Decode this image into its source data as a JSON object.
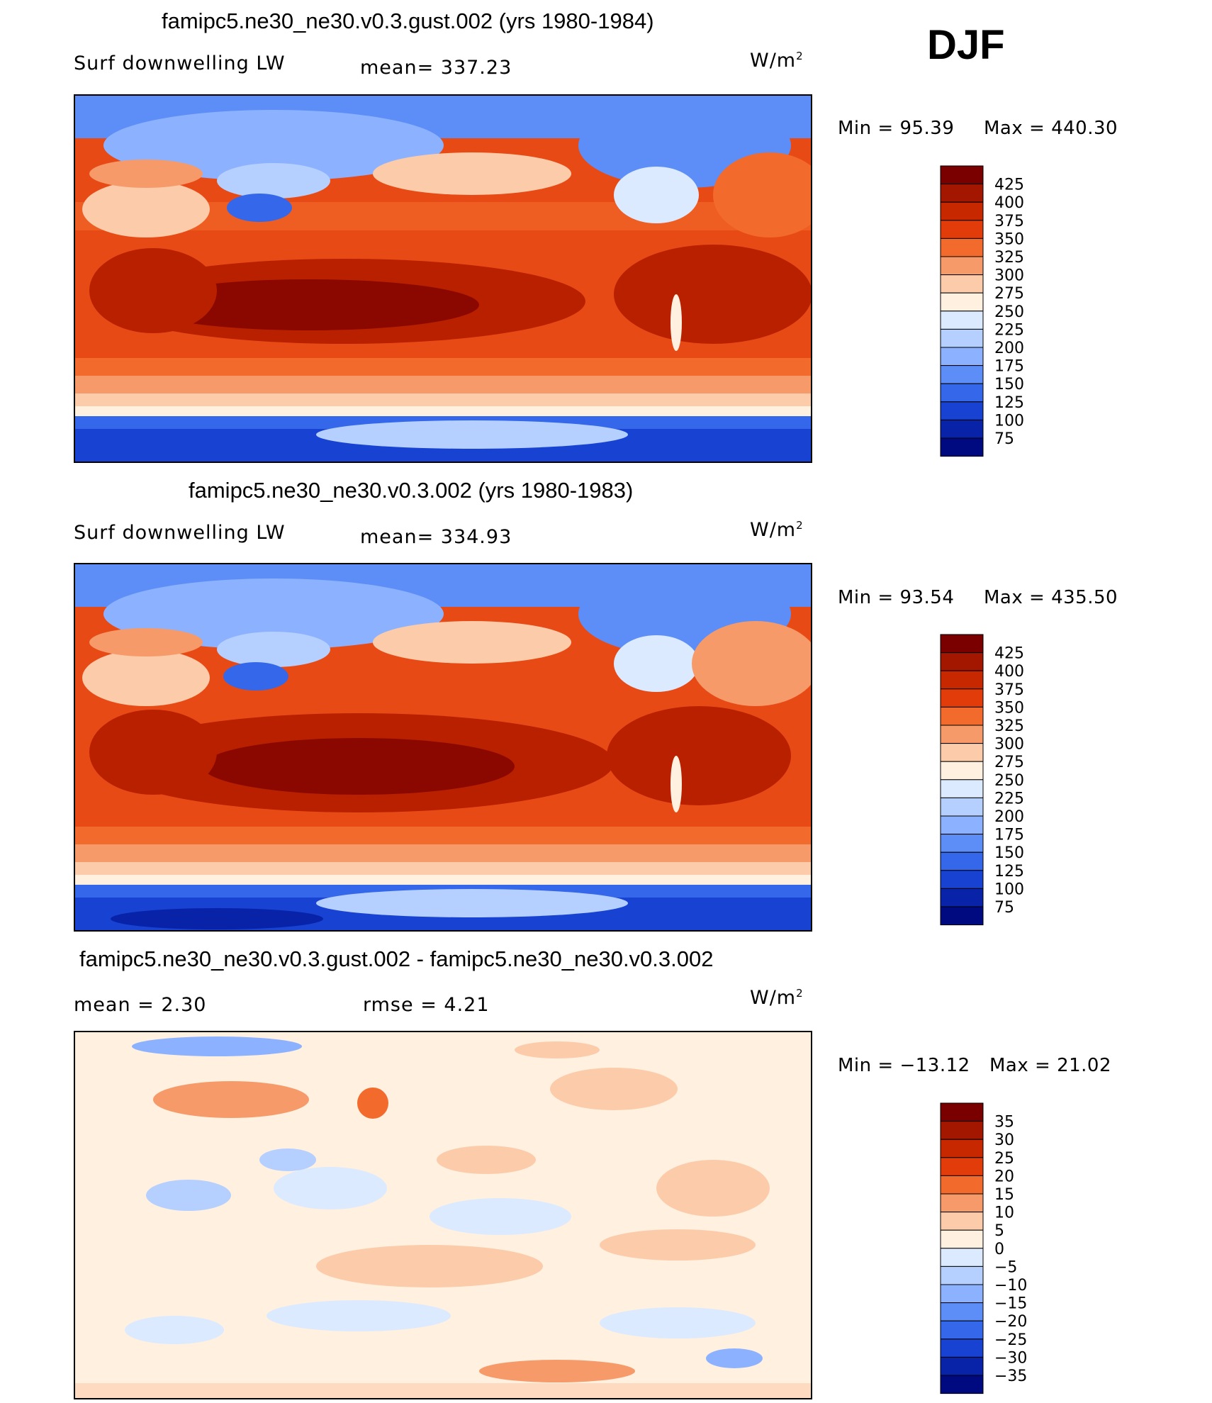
{
  "season": "DJF",
  "units_label": "W/m",
  "units_sup": "2",
  "panels": [
    {
      "title": "famipc5.ne30_ne30.v0.3.gust.002 (yrs 1980-1984)",
      "left_label": "Surf  downwelling LW",
      "stat_text": "mean=  337.23",
      "min_text": "Min  =    95.39",
      "max_text": "Max  =  440.30",
      "colorbar_labels": [
        "425",
        "400",
        "375",
        "350",
        "325",
        "300",
        "275",
        "250",
        "225",
        "200",
        "175",
        "150",
        "125",
        "100",
        "75"
      ],
      "colors": [
        "#7a0000",
        "#a31600",
        "#c82800",
        "#e23c0a",
        "#f26a2c",
        "#f79a6a",
        "#fccbaa",
        "#fff0e0",
        "#dbeaff",
        "#b5cfff",
        "#8cb2ff",
        "#5d8ef7",
        "#3567ea",
        "#1742d2",
        "#0822a8",
        "#000a80"
      ]
    },
    {
      "title": "famipc5.ne30_ne30.v0.3.002 (yrs 1980-1983)",
      "left_label": "Surf  downwelling LW",
      "stat_text": "mean=  334.93",
      "min_text": "Min  =    93.54",
      "max_text": "Max  =  435.50",
      "colorbar_labels": [
        "425",
        "400",
        "375",
        "350",
        "325",
        "300",
        "275",
        "250",
        "225",
        "200",
        "175",
        "150",
        "125",
        "100",
        "75"
      ],
      "colors": [
        "#7a0000",
        "#a31600",
        "#c82800",
        "#e23c0a",
        "#f26a2c",
        "#f79a6a",
        "#fccbaa",
        "#fff0e0",
        "#dbeaff",
        "#b5cfff",
        "#8cb2ff",
        "#5d8ef7",
        "#3567ea",
        "#1742d2",
        "#0822a8",
        "#000a80"
      ]
    },
    {
      "title": "famipc5.ne30_ne30.v0.3.gust.002 - famipc5.ne30_ne30.v0.3.002",
      "mean_text": "mean  =      2.30",
      "rmse_text": "rmse  =      4.21",
      "min_text": "Min  =  −13.12",
      "max_text": "Max  =    21.02",
      "colorbar_labels": [
        "35",
        "30",
        "25",
        "20",
        "15",
        "10",
        "5",
        "0",
        "−5",
        "−10",
        "−15",
        "−20",
        "−25",
        "−30",
        "−35"
      ],
      "colors": [
        "#7a0000",
        "#a31600",
        "#c82800",
        "#e23c0a",
        "#f26a2c",
        "#f79a6a",
        "#fccbaa",
        "#fff0e0",
        "#dbeaff",
        "#b5cfff",
        "#8cb2ff",
        "#5d8ef7",
        "#3567ea",
        "#1742d2",
        "#0822a8",
        "#000a80"
      ]
    }
  ]
}
